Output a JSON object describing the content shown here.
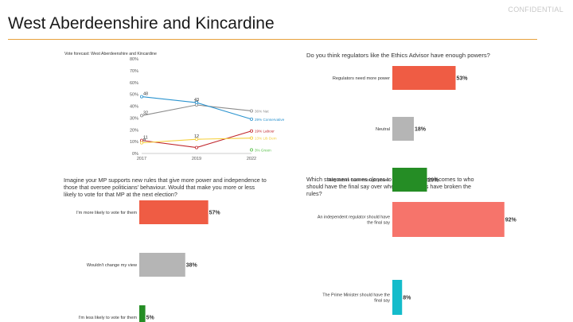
{
  "header": {
    "title": "West Aberdeenshire and Kincardine",
    "confidential": "CONFIDENTIAL"
  },
  "colors": {
    "accent": "#e8a13c",
    "bar_red": "#ef5c44",
    "bar_grey": "#b5b5b5",
    "bar_green": "#258d25",
    "bar_salmon": "#f6746b",
    "bar_teal": "#14bccb"
  },
  "chart_data": [
    {
      "type": "line",
      "title": "Vote forecast: West Aberdeenshire and Kincardine",
      "x": [
        "2017",
        "2019",
        "2022"
      ],
      "ylim": [
        0,
        80
      ],
      "yticks": [
        "0%",
        "10%",
        "20%",
        "30%",
        "40%",
        "50%",
        "60%",
        "70%",
        "80%"
      ],
      "series": [
        {
          "name": "Nat",
          "values": [
            32,
            41,
            36
          ],
          "labels": [
            "32",
            "41",
            ""
          ],
          "end_label": "36% Nat",
          "color": "#8c8c8c"
        },
        {
          "name": "Conservative",
          "values": [
            48,
            43,
            29
          ],
          "labels": [
            "48",
            "43",
            ""
          ],
          "end_label": "29% Conservative",
          "color": "#2a93cf"
        },
        {
          "name": "Labour",
          "values": [
            11,
            5,
            19
          ],
          "labels": [
            "11",
            "",
            ""
          ],
          "end_label": "19% Labour",
          "color": "#c0262c"
        },
        {
          "name": "Lib Dem",
          "values": [
            9,
            12,
            13
          ],
          "labels": [
            "9",
            "12",
            ""
          ],
          "end_label": "13% Lib Dem",
          "color": "#f5cf3a"
        },
        {
          "name": "Green",
          "values": [
            null,
            null,
            3
          ],
          "labels": [
            "",
            "",
            ""
          ],
          "end_label": "3% Green",
          "color": "#58c04a"
        }
      ]
    },
    {
      "type": "bar",
      "title": "Do you think regulators like the Ethics Advisor have enough powers?",
      "categories": [
        "Regulators need more power",
        "Neutral",
        "Regulators have enough power"
      ],
      "values": [
        53,
        18,
        29
      ],
      "labels": [
        "53%",
        "18%",
        "29%"
      ],
      "colors": [
        "#ef5c44",
        "#b5b5b5",
        "#258d25"
      ]
    },
    {
      "type": "bar",
      "title": "Imagine your MP supports new rules that give more power and independence to those that oversee politicians' behaviour. Would that make you more or less likely to vote for that MP at the next election?",
      "categories": [
        "I'm more likely to vote for them",
        "Wouldn't change my view",
        "I'm less likely to vote for them"
      ],
      "values": [
        57,
        38,
        5
      ],
      "labels": [
        "57%",
        "38%",
        "5%"
      ],
      "colors": [
        "#ef5c44",
        "#b5b5b5",
        "#258d25"
      ]
    },
    {
      "type": "bar",
      "title": "Which statement comes closes to your view when it comes to who should have the final say over whether Ministers have broken the rules?",
      "categories": [
        "An independent regulator should have the final say",
        "The Prime Minister should have the final say"
      ],
      "values": [
        92,
        8
      ],
      "labels": [
        "92%",
        "8%"
      ],
      "colors": [
        "#f6746b",
        "#14bccb"
      ]
    }
  ]
}
